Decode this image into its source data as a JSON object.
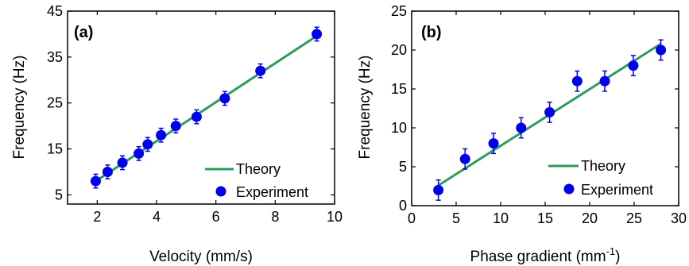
{
  "colors": {
    "theory": "#2a9d5c",
    "experiment": "#0000ee",
    "axis": "#000000"
  },
  "chart_data": [
    {
      "type": "scatter",
      "panel_label": "(a)",
      "xlabel": "Velocity (mm/s)",
      "ylabel": "Frequency (Hz)",
      "xlim": [
        1,
        10
      ],
      "ylim": [
        3,
        45
      ],
      "x_ticks": [
        "2",
        "4",
        "6",
        "8",
        "10"
      ],
      "y_ticks": [
        "5",
        "15",
        "25",
        "35",
        "45"
      ],
      "x_tick_values": [
        2,
        4,
        6,
        8,
        10
      ],
      "y_tick_values": [
        5,
        15,
        25,
        35,
        45
      ],
      "grid": false,
      "legend_placement": "bottom-right",
      "series": [
        {
          "name": "Theory",
          "kind": "line",
          "x": [
            1.95,
            9.4
          ],
          "y": [
            8,
            39.6
          ]
        },
        {
          "name": "Experiment",
          "kind": "points_with_error",
          "x": [
            1.95,
            2.35,
            2.85,
            3.4,
            3.7,
            4.15,
            4.65,
            5.35,
            6.3,
            7.5,
            9.4
          ],
          "y": [
            8,
            10,
            12,
            14,
            16,
            18,
            20,
            22,
            26,
            32,
            40
          ],
          "err": [
            1.5,
            1.5,
            1.5,
            1.5,
            1.5,
            1.5,
            1.5,
            1.5,
            1.5,
            1.5,
            1.5
          ]
        }
      ]
    },
    {
      "type": "scatter",
      "panel_label": "(b)",
      "xlabel": "Phase gradient (mm",
      "xlabel_sup": "-1",
      "xlabel_close": ")",
      "ylabel": "Frequency (Hz)",
      "xlim": [
        0,
        30
      ],
      "ylim": [
        0,
        25
      ],
      "x_ticks": [
        "0",
        "5",
        "10",
        "15",
        "20",
        "25",
        "30"
      ],
      "y_ticks": [
        "0",
        "5",
        "10",
        "15",
        "20",
        "25"
      ],
      "x_tick_values": [
        0,
        5,
        10,
        15,
        20,
        25,
        30
      ],
      "y_tick_values": [
        0,
        5,
        10,
        15,
        20,
        25
      ],
      "grid": false,
      "legend_placement": "bottom-right",
      "series": [
        {
          "name": "Theory",
          "kind": "line",
          "x": [
            3,
            28
          ],
          "y": [
            2.6,
            20.8
          ]
        },
        {
          "name": "Experiment",
          "kind": "points_with_error",
          "x": [
            3,
            6,
            9.2,
            12.3,
            15.5,
            18.6,
            21.7,
            24.9,
            28
          ],
          "y": [
            2,
            6,
            8,
            10,
            12,
            16,
            16,
            18,
            20
          ],
          "err": [
            1.3,
            1.3,
            1.3,
            1.3,
            1.3,
            1.3,
            1.3,
            1.3,
            1.3
          ]
        }
      ]
    }
  ]
}
